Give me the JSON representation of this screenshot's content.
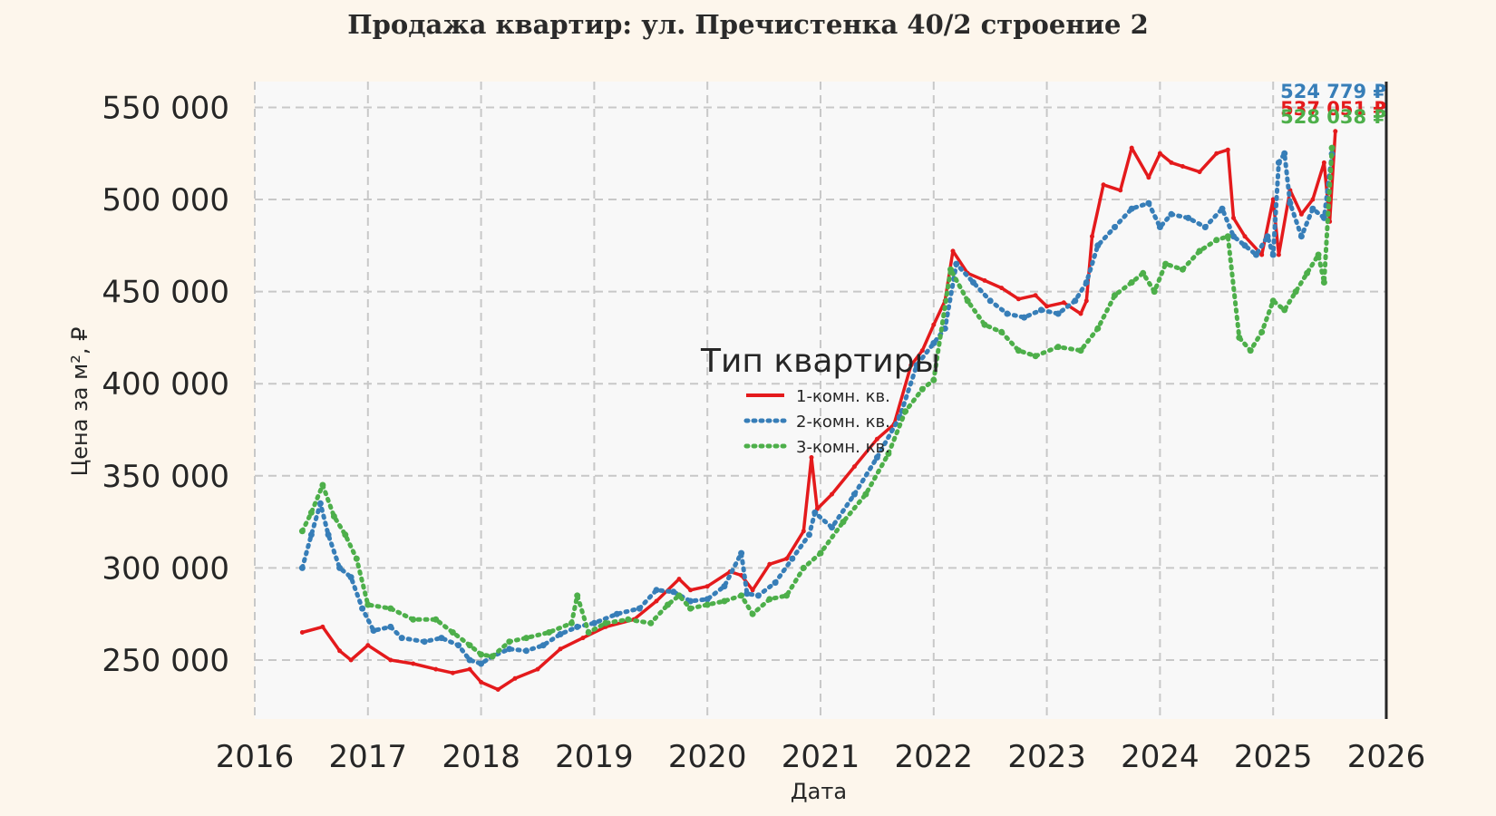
{
  "chart_data": {
    "type": "line",
    "title": "Продажа квартир: ул. Пречистенка 40/2 строение 2",
    "xlabel": "Дата",
    "ylabel": "Цена за м², ₽",
    "xlim": [
      2016,
      2026
    ],
    "ylim": [
      218000,
      564000
    ],
    "x_ticks": [
      "2016",
      "2017",
      "2018",
      "2019",
      "2020",
      "2021",
      "2022",
      "2023",
      "2024",
      "2025",
      "2026"
    ],
    "y_ticks": [
      {
        "value": 250000,
        "label": "250 000"
      },
      {
        "value": 300000,
        "label": "300 000"
      },
      {
        "value": 350000,
        "label": "350 000"
      },
      {
        "value": 400000,
        "label": "400 000"
      },
      {
        "value": 450000,
        "label": "450 000"
      },
      {
        "value": 500000,
        "label": "500 000"
      },
      {
        "value": 550000,
        "label": "550 000"
      }
    ],
    "grid": true,
    "legend": {
      "title": "Тип квартиры",
      "position": "center"
    },
    "series": [
      {
        "name": "1-комн. кв.",
        "color": "#e41a1c",
        "style": "solid",
        "end_label": "537 051 ₽",
        "x": [
          2016.42,
          2016.6,
          2016.75,
          2016.85,
          2017.0,
          2017.2,
          2017.4,
          2017.6,
          2017.75,
          2017.9,
          2018.0,
          2018.15,
          2018.3,
          2018.5,
          2018.7,
          2018.9,
          2019.1,
          2019.35,
          2019.55,
          2019.75,
          2019.85,
          2020.0,
          2020.2,
          2020.3,
          2020.4,
          2020.55,
          2020.7,
          2020.85,
          2020.92,
          2020.97,
          2021.1,
          2021.3,
          2021.5,
          2021.65,
          2021.8,
          2021.9,
          2022.0,
          2022.1,
          2022.17,
          2022.3,
          2022.45,
          2022.6,
          2022.75,
          2022.9,
          2023.0,
          2023.15,
          2023.3,
          2023.35,
          2023.4,
          2023.5,
          2023.65,
          2023.75,
          2023.9,
          2024.0,
          2024.1,
          2024.2,
          2024.35,
          2024.5,
          2024.6,
          2024.65,
          2024.75,
          2024.9,
          2025.0,
          2025.05,
          2025.15,
          2025.25,
          2025.35,
          2025.45,
          2025.5,
          2025.55
        ],
        "y": [
          265000,
          268000,
          255000,
          250000,
          258000,
          250000,
          248000,
          245000,
          243000,
          245000,
          238000,
          234000,
          240000,
          245000,
          256000,
          262000,
          268000,
          272000,
          282000,
          294000,
          288000,
          290000,
          298000,
          296000,
          288000,
          302000,
          305000,
          320000,
          360000,
          332000,
          340000,
          355000,
          370000,
          378000,
          410000,
          418000,
          432000,
          445000,
          472000,
          460000,
          456000,
          452000,
          446000,
          448000,
          442000,
          444000,
          438000,
          445000,
          480000,
          508000,
          505000,
          528000,
          512000,
          525000,
          520000,
          518000,
          515000,
          525000,
          527000,
          490000,
          480000,
          470000,
          500000,
          470000,
          505000,
          492000,
          500000,
          520000,
          488000,
          537051
        ]
      },
      {
        "name": "2-комн. кв.",
        "color": "#377eb8",
        "style": "dotted",
        "end_label": "524 779 ₽",
        "x": [
          2016.42,
          2016.5,
          2016.58,
          2016.65,
          2016.75,
          2016.85,
          2016.95,
          2017.05,
          2017.2,
          2017.3,
          2017.5,
          2017.65,
          2017.8,
          2017.9,
          2018.0,
          2018.1,
          2018.25,
          2018.4,
          2018.55,
          2018.7,
          2018.85,
          2019.0,
          2019.2,
          2019.4,
          2019.55,
          2019.7,
          2019.85,
          2020.0,
          2020.15,
          2020.3,
          2020.35,
          2020.45,
          2020.6,
          2020.75,
          2020.9,
          2020.95,
          2021.1,
          2021.3,
          2021.5,
          2021.7,
          2021.85,
          2022.0,
          2022.1,
          2022.2,
          2022.35,
          2022.5,
          2022.65,
          2022.8,
          2022.95,
          2023.1,
          2023.25,
          2023.35,
          2023.45,
          2023.6,
          2023.75,
          2023.9,
          2024.0,
          2024.1,
          2024.25,
          2024.4,
          2024.55,
          2024.65,
          2024.75,
          2024.85,
          2024.95,
          2025.0,
          2025.05,
          2025.1,
          2025.15,
          2025.25,
          2025.35,
          2025.45,
          2025.52
        ],
        "y": [
          300000,
          318000,
          335000,
          318000,
          300000,
          295000,
          278000,
          266000,
          268000,
          262000,
          260000,
          262000,
          258000,
          250000,
          248000,
          252000,
          256000,
          255000,
          258000,
          264000,
          268000,
          270000,
          275000,
          278000,
          288000,
          287000,
          282000,
          283000,
          290000,
          308000,
          286000,
          285000,
          292000,
          305000,
          318000,
          330000,
          322000,
          340000,
          360000,
          382000,
          410000,
          422000,
          430000,
          465000,
          455000,
          445000,
          438000,
          436000,
          440000,
          438000,
          445000,
          455000,
          475000,
          485000,
          495000,
          498000,
          485000,
          492000,
          490000,
          485000,
          495000,
          480000,
          475000,
          470000,
          480000,
          470000,
          520000,
          525000,
          498000,
          480000,
          495000,
          490000,
          524779
        ]
      },
      {
        "name": "3-комн. кв.",
        "color": "#4daf4a",
        "style": "dotted",
        "end_label": "528 038 ₽",
        "x": [
          2016.42,
          2016.5,
          2016.6,
          2016.7,
          2016.8,
          2016.9,
          2017.0,
          2017.2,
          2017.4,
          2017.6,
          2017.75,
          2017.9,
          2018.0,
          2018.1,
          2018.25,
          2018.4,
          2018.6,
          2018.8,
          2018.85,
          2018.95,
          2019.1,
          2019.3,
          2019.5,
          2019.65,
          2019.75,
          2019.85,
          2020.0,
          2020.15,
          2020.3,
          2020.4,
          2020.55,
          2020.7,
          2020.85,
          2021.0,
          2021.2,
          2021.4,
          2021.6,
          2021.75,
          2021.9,
          2022.0,
          2022.15,
          2022.3,
          2022.45,
          2022.6,
          2022.75,
          2022.9,
          2023.1,
          2023.3,
          2023.45,
          2023.6,
          2023.75,
          2023.85,
          2023.95,
          2024.05,
          2024.2,
          2024.35,
          2024.5,
          2024.6,
          2024.7,
          2024.8,
          2024.9,
          2025.0,
          2025.1,
          2025.2,
          2025.3,
          2025.4,
          2025.45,
          2025.52
        ],
        "y": [
          320000,
          330000,
          345000,
          328000,
          318000,
          305000,
          280000,
          278000,
          272000,
          272000,
          265000,
          258000,
          253000,
          252000,
          260000,
          262000,
          265000,
          270000,
          285000,
          265000,
          270000,
          272000,
          270000,
          280000,
          285000,
          278000,
          280000,
          282000,
          285000,
          275000,
          283000,
          285000,
          300000,
          308000,
          325000,
          340000,
          362000,
          385000,
          397000,
          402000,
          462000,
          445000,
          432000,
          428000,
          418000,
          415000,
          420000,
          418000,
          430000,
          448000,
          455000,
          460000,
          450000,
          465000,
          462000,
          472000,
          478000,
          480000,
          425000,
          418000,
          428000,
          445000,
          440000,
          450000,
          460000,
          470000,
          455000,
          528038
        ]
      }
    ]
  }
}
